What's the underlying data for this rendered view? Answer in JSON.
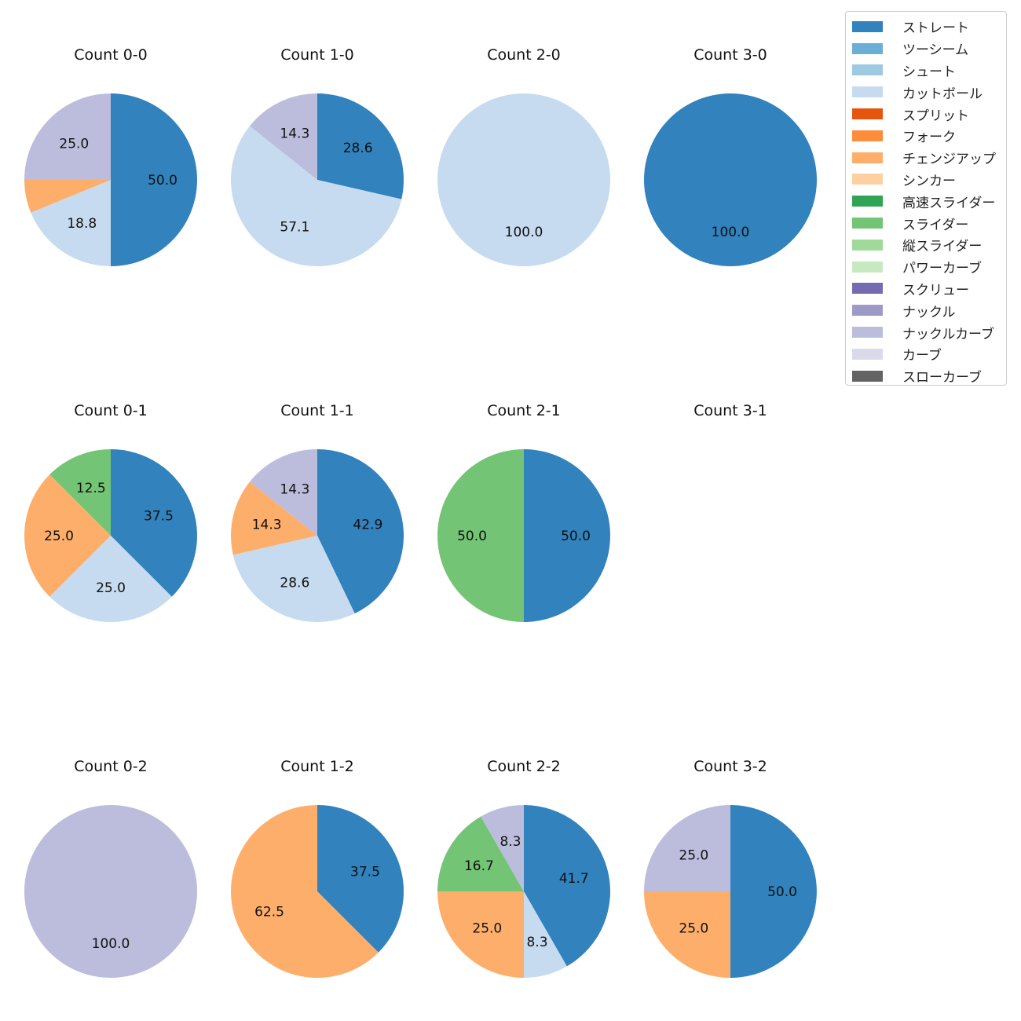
{
  "chart_data": {
    "type": "pie",
    "legend": {
      "placement": "top-right",
      "entries": [
        {
          "name": "ストレート",
          "color": "#3182bd"
        },
        {
          "name": "ツーシーム",
          "color": "#6baed6"
        },
        {
          "name": "シュート",
          "color": "#9ecae1"
        },
        {
          "name": "カットボール",
          "color": "#c6dbef"
        },
        {
          "name": "スプリット",
          "color": "#e6550d"
        },
        {
          "name": "フォーク",
          "color": "#fd8d3c"
        },
        {
          "name": "チェンジアップ",
          "color": "#fdae6b"
        },
        {
          "name": "シンカー",
          "color": "#fdd0a2"
        },
        {
          "name": "高速スライダー",
          "color": "#31a354"
        },
        {
          "name": "スライダー",
          "color": "#74c476"
        },
        {
          "name": "縦スライダー",
          "color": "#a1d99b"
        },
        {
          "name": "パワーカーブ",
          "color": "#c7e9c0"
        },
        {
          "name": "スクリュー",
          "color": "#756bb1"
        },
        {
          "name": "ナックル",
          "color": "#9e9ac8"
        },
        {
          "name": "ナックルカーブ",
          "color": "#bcbddc"
        },
        {
          "name": "カーブ",
          "color": "#dadaeb"
        },
        {
          "name": "スローカーブ",
          "color": "#636363"
        }
      ]
    },
    "pies": [
      {
        "title": "Count 0-0",
        "slices": [
          {
            "name": "ストレート",
            "value": 50.0
          },
          {
            "name": "カットボール",
            "value": 18.8
          },
          {
            "name": "チェンジアップ",
            "value": 6.2
          },
          {
            "name": "ナックルカーブ",
            "value": 25.0
          }
        ]
      },
      {
        "title": "Count 1-0",
        "slices": [
          {
            "name": "ストレート",
            "value": 28.6
          },
          {
            "name": "カットボール",
            "value": 57.1
          },
          {
            "name": "ナックルカーブ",
            "value": 14.3
          }
        ]
      },
      {
        "title": "Count 2-0",
        "slices": [
          {
            "name": "カットボール",
            "value": 100.0
          }
        ]
      },
      {
        "title": "Count 3-0",
        "slices": [
          {
            "name": "ストレート",
            "value": 100.0
          }
        ]
      },
      {
        "title": "Count 0-1",
        "slices": [
          {
            "name": "ストレート",
            "value": 37.5
          },
          {
            "name": "カットボール",
            "value": 25.0
          },
          {
            "name": "チェンジアップ",
            "value": 25.0
          },
          {
            "name": "スライダー",
            "value": 12.5
          }
        ]
      },
      {
        "title": "Count 1-1",
        "slices": [
          {
            "name": "ストレート",
            "value": 42.9
          },
          {
            "name": "カットボール",
            "value": 28.6
          },
          {
            "name": "チェンジアップ",
            "value": 14.3
          },
          {
            "name": "ナックルカーブ",
            "value": 14.3
          }
        ]
      },
      {
        "title": "Count 2-1",
        "slices": [
          {
            "name": "ストレート",
            "value": 50.0
          },
          {
            "name": "スライダー",
            "value": 50.0
          }
        ]
      },
      {
        "title": "Count 3-1",
        "slices": []
      },
      {
        "title": "Count 0-2",
        "slices": [
          {
            "name": "ナックルカーブ",
            "value": 100.0
          }
        ]
      },
      {
        "title": "Count 1-2",
        "slices": [
          {
            "name": "ストレート",
            "value": 37.5
          },
          {
            "name": "チェンジアップ",
            "value": 62.5
          }
        ]
      },
      {
        "title": "Count 2-2",
        "slices": [
          {
            "name": "ストレート",
            "value": 41.7
          },
          {
            "name": "カットボール",
            "value": 8.3
          },
          {
            "name": "チェンジアップ",
            "value": 25.0
          },
          {
            "name": "スライダー",
            "value": 16.7
          },
          {
            "name": "ナックルカーブ",
            "value": 8.3
          }
        ]
      },
      {
        "title": "Count 3-2",
        "slices": [
          {
            "name": "ストレート",
            "value": 50.0
          },
          {
            "name": "チェンジアップ",
            "value": 25.0
          },
          {
            "name": "ナックルカーブ",
            "value": 25.0
          }
        ]
      }
    ]
  }
}
